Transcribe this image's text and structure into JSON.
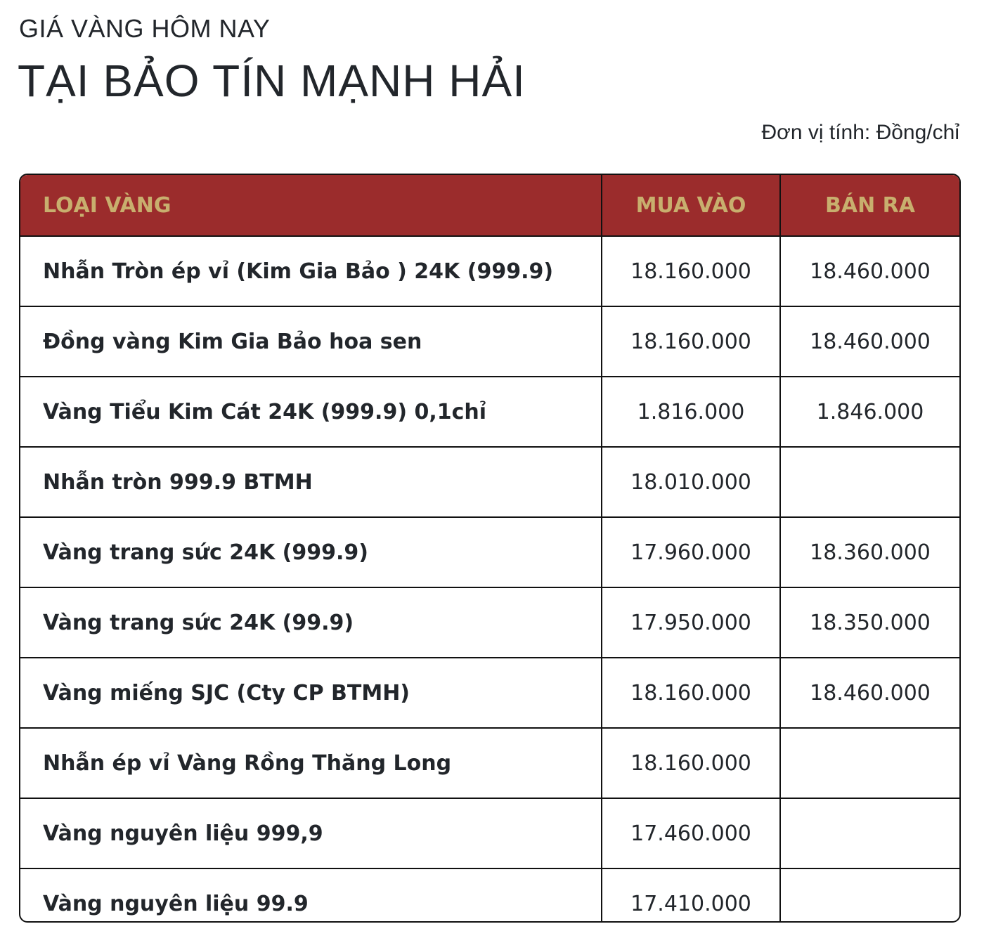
{
  "header": {
    "subtitle": "GIÁ VÀNG HÔM NAY",
    "title": "TẠI BẢO TÍN MẠNH HẢI",
    "unit": "Đơn vị tính: Đồng/chỉ"
  },
  "colors": {
    "header_bg": "#9b2c2c",
    "header_text": "#c8af6e"
  },
  "table": {
    "columns": [
      "LOẠI VÀNG",
      "MUA VÀO",
      "BÁN RA"
    ],
    "rows": [
      {
        "name": "Nhẫn Tròn ép vỉ (Kim Gia Bảo ) 24K (999.9)",
        "buy": "18.160.000",
        "sell": "18.460.000"
      },
      {
        "name": "Đồng vàng Kim Gia Bảo hoa sen",
        "buy": "18.160.000",
        "sell": "18.460.000"
      },
      {
        "name": "Vàng Tiểu Kim Cát 24K (999.9) 0,1chỉ",
        "buy": "1.816.000",
        "sell": "1.846.000"
      },
      {
        "name": "Nhẫn tròn 999.9 BTMH",
        "buy": "18.010.000",
        "sell": ""
      },
      {
        "name": "Vàng trang sức 24K (999.9)",
        "buy": "17.960.000",
        "sell": "18.360.000"
      },
      {
        "name": "Vàng trang sức 24K (99.9)",
        "buy": "17.950.000",
        "sell": "18.350.000"
      },
      {
        "name": "Vàng miếng SJC (Cty CP BTMH)",
        "buy": "18.160.000",
        "sell": "18.460.000"
      },
      {
        "name": "Nhẫn ép vỉ Vàng Rồng Thăng Long",
        "buy": "18.160.000",
        "sell": ""
      },
      {
        "name": "Vàng nguyên liệu 999,9",
        "buy": "17.460.000",
        "sell": ""
      },
      {
        "name": "Vàng nguyên liệu 99.9",
        "buy": "17.410.000",
        "sell": ""
      }
    ]
  }
}
